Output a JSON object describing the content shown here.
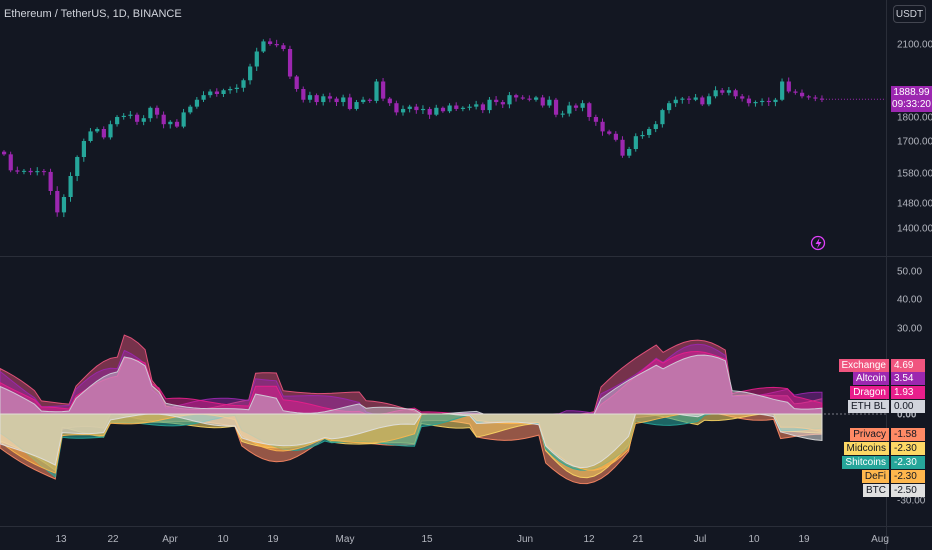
{
  "header": {
    "symbol": "Ethereum / TetherUS, 1D, BINANCE",
    "currency_button": "USDT"
  },
  "current_price": {
    "value": "1888.99",
    "countdown": "09:33:20"
  },
  "colors": {
    "bull": "#26a69a",
    "bear": "#9c27b0",
    "grid": "#2a2e39",
    "axis_text": "#b2b5be",
    "background": "#131722"
  },
  "icons": {
    "flash": "lightning-icon"
  },
  "chart_data": [
    {
      "type": "candlestick",
      "title": "Ethereum / TetherUS, 1D, BINANCE",
      "ylim": [
        1300,
        2200
      ],
      "y_ticks": [
        "2100.00",
        "1900.00",
        "1800.00",
        "1700.00",
        "1580.00",
        "1480.00",
        "1400.00"
      ],
      "x_ticks": [
        "13",
        "22",
        "Apr",
        "10",
        "19",
        "May",
        "15",
        "Jun",
        "12",
        "21",
        "Jul",
        "10",
        "19",
        "Aug"
      ],
      "close": [
        1650,
        1590,
        1585,
        1588,
        1583,
        1587,
        1584,
        1520,
        1450,
        1500,
        1570,
        1640,
        1700,
        1740,
        1750,
        1715,
        1770,
        1800,
        1805,
        1810,
        1780,
        1795,
        1840,
        1810,
        1770,
        1780,
        1760,
        1820,
        1845,
        1875,
        1895,
        1910,
        1900,
        1915,
        1920,
        1925,
        1955,
        2010,
        2070,
        2110,
        2100,
        2095,
        2080,
        1970,
        1920,
        1875,
        1895,
        1865,
        1890,
        1880,
        1865,
        1885,
        1835,
        1865,
        1875,
        1870,
        1950,
        1880,
        1860,
        1820,
        1835,
        1845,
        1830,
        1835,
        1810,
        1840,
        1825,
        1850,
        1835,
        1840,
        1845,
        1855,
        1830,
        1875,
        1865,
        1855,
        1895,
        1885,
        1880,
        1875,
        1885,
        1850,
        1875,
        1810,
        1815,
        1850,
        1840,
        1860,
        1800,
        1780,
        1740,
        1730,
        1705,
        1645,
        1670,
        1720,
        1725,
        1750,
        1770,
        1830,
        1860,
        1875,
        1880,
        1875,
        1885,
        1855,
        1890,
        1915,
        1905,
        1915,
        1890,
        1880,
        1860,
        1865,
        1870,
        1865,
        1875,
        1950,
        1910,
        1905,
        1890,
        1885,
        1880,
        1877
      ]
    },
    {
      "type": "area",
      "ylim": [
        -35,
        55
      ],
      "y_ticks": [
        "50.00",
        "40.00",
        "30.00",
        "0.00",
        "-30.00"
      ],
      "zero_label": "0.00",
      "series": [
        {
          "name": "Exchange",
          "last": "4.69",
          "color": "#f0557f"
        },
        {
          "name": "Altcoin",
          "last": "3.54",
          "color": "#9c27b0"
        },
        {
          "name": "Dragon",
          "last": "1.93",
          "color": "#e91e8c"
        },
        {
          "name": "ETH BL",
          "last": "0.00",
          "color": "#d1d4dc"
        },
        {
          "name": "Privacy",
          "last": "-1.58",
          "color": "#ff8a65"
        },
        {
          "name": "Midcoins",
          "last": "-2.30",
          "color": "#fdd865"
        },
        {
          "name": "Shitcoins",
          "last": "-2.30",
          "color": "#26a69a"
        },
        {
          "name": "DeFi",
          "last": "-2.30",
          "color": "#ffb74d"
        },
        {
          "name": "BTC",
          "last": "-2.50",
          "color": "#e0e0e0"
        }
      ]
    }
  ]
}
